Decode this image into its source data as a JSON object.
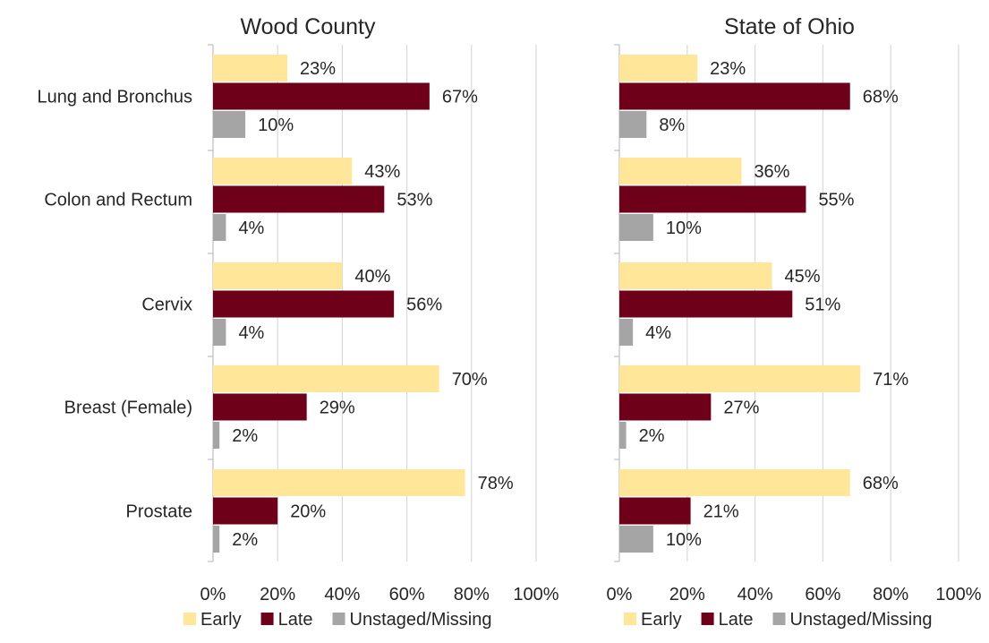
{
  "chart_data": [
    {
      "type": "bar",
      "orientation": "horizontal",
      "title": "Wood County",
      "categories": [
        "Lung and Bronchus",
        "Colon and Rectum",
        "Cervix",
        "Breast (Female)",
        "Prostate"
      ],
      "series": [
        {
          "name": "Early",
          "color": "#FFE699",
          "values": [
            23,
            43,
            40,
            70,
            78
          ]
        },
        {
          "name": "Late",
          "color": "#6E0019",
          "values": [
            67,
            53,
            56,
            29,
            20
          ]
        },
        {
          "name": "Unstaged/Missing",
          "color": "#A5A5A5",
          "values": [
            10,
            4,
            4,
            2,
            2
          ]
        }
      ],
      "value_suffix": "%",
      "xlim": [
        0,
        100
      ],
      "xticks": [
        "0%",
        "20%",
        "40%",
        "60%",
        "80%",
        "100%"
      ],
      "xlabel": "",
      "ylabel": "",
      "grid": true,
      "legend": "bottom"
    },
    {
      "type": "bar",
      "orientation": "horizontal",
      "title": "State of Ohio",
      "categories": [
        "Lung and Bronchus",
        "Colon and Rectum",
        "Cervix",
        "Breast (Female)",
        "Prostate"
      ],
      "series": [
        {
          "name": "Early",
          "color": "#FFE699",
          "values": [
            23,
            36,
            45,
            71,
            68
          ]
        },
        {
          "name": "Late",
          "color": "#6E0019",
          "values": [
            68,
            55,
            51,
            27,
            21
          ]
        },
        {
          "name": "Unstaged/Missing",
          "color": "#A5A5A5",
          "values": [
            8,
            10,
            4,
            2,
            10
          ]
        }
      ],
      "value_suffix": "%",
      "xlim": [
        0,
        100
      ],
      "xticks": [
        "0%",
        "20%",
        "40%",
        "60%",
        "80%",
        "100%"
      ],
      "xlabel": "",
      "ylabel": "",
      "grid": true,
      "legend": "bottom"
    }
  ]
}
